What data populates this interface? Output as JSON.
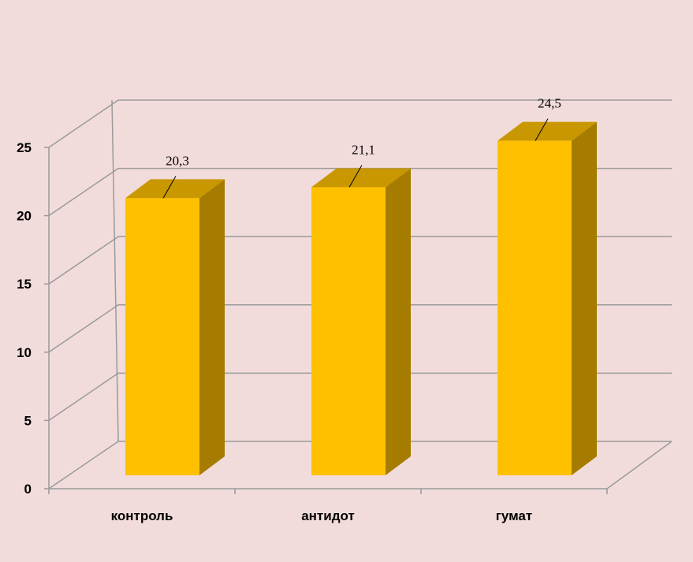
{
  "chart_data": {
    "type": "bar3d",
    "categories": [
      "контроль",
      "антидот",
      "гумат"
    ],
    "values": [
      20.3,
      21.1,
      24.5
    ],
    "value_labels": [
      "20,3",
      "21,1",
      "24,5"
    ],
    "color": "#ffc000",
    "ylim": [
      0,
      25
    ],
    "yticks": [
      0,
      5,
      10,
      15,
      20,
      25
    ],
    "grid": true
  }
}
